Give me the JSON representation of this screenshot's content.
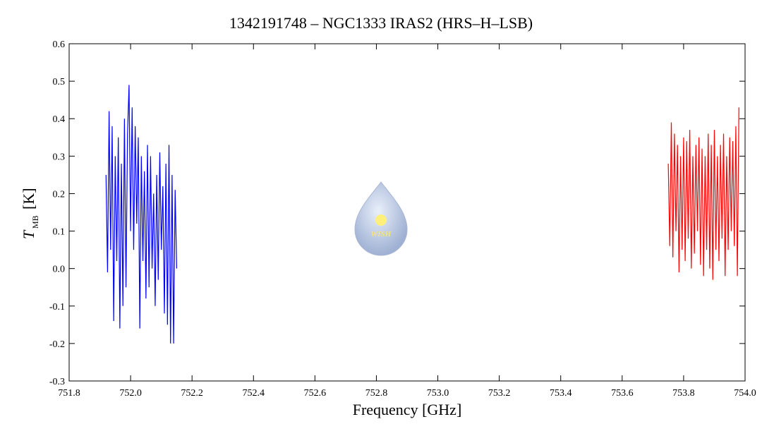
{
  "chart_data": {
    "type": "line",
    "title": "1342191748 – NGC1333 IRAS2 (HRS–H–LSB)",
    "x_label": "Frequency [GHz]",
    "y_label": {
      "symbol": "T",
      "subscript": "MB",
      "unit": "[K]"
    },
    "logo_text": "WISH",
    "xlim": [
      751.8,
      754.0
    ],
    "xticks": [
      751.8,
      {
        "value": 752,
        "label": "752.0"
      },
      752.2,
      752.4,
      752.6,
      752.8,
      {
        "value": 753,
        "label": "753.0"
      },
      753.2,
      753.4,
      753.6,
      753.8,
      {
        "value": 754,
        "label": "754.0"
      }
    ],
    "ylim": [
      -0.3,
      0.6
    ],
    "yticks": [
      -0.3,
      -0.2,
      -0.1,
      {
        "value": 0,
        "label": "0.0"
      },
      0.1,
      0.2,
      0.3,
      0.4,
      0.5,
      0.6
    ],
    "grid": false,
    "series": [
      {
        "color": "#0000ff",
        "x": [
          751.92,
          751.925,
          751.93,
          751.935,
          751.94,
          751.945,
          751.95,
          751.955,
          751.96,
          751.965,
          751.97,
          751.975,
          751.98,
          751.985,
          751.99,
          751.995,
          752.0,
          752.005,
          752.01,
          752.015,
          752.02,
          752.025,
          752.03,
          752.035,
          752.04,
          752.045,
          752.05,
          752.055,
          752.06,
          752.065,
          752.07,
          752.075,
          752.08,
          752.085,
          752.09,
          752.095,
          752.1,
          752.105,
          752.11,
          752.115,
          752.12,
          752.125,
          752.13,
          752.135,
          752.14,
          752.145,
          752.15
        ],
        "values": [
          0.25,
          -0.01,
          0.42,
          0.05,
          0.38,
          -0.14,
          0.3,
          0.02,
          0.35,
          -0.16,
          0.28,
          -0.1,
          0.4,
          -0.05,
          0.36,
          0.49,
          0.1,
          0.43,
          0.05,
          0.38,
          0.12,
          0.35,
          -0.16,
          0.3,
          0.02,
          0.26,
          -0.08,
          0.33,
          -0.05,
          0.3,
          0.0,
          0.2,
          -0.1,
          0.25,
          -0.03,
          0.31,
          0.05,
          0.22,
          -0.12,
          0.28,
          -0.15,
          0.33,
          -0.2,
          0.25,
          -0.2,
          0.21,
          0.0
        ]
      },
      {
        "color": "#ff0000",
        "x": [
          753.75,
          753.755,
          753.76,
          753.765,
          753.77,
          753.775,
          753.78,
          753.785,
          753.79,
          753.795,
          753.8,
          753.805,
          753.81,
          753.815,
          753.82,
          753.825,
          753.83,
          753.835,
          753.84,
          753.845,
          753.85,
          753.855,
          753.86,
          753.865,
          753.87,
          753.875,
          753.88,
          753.885,
          753.89,
          753.895,
          753.9,
          753.905,
          753.91,
          753.915,
          753.92,
          753.925,
          753.93,
          753.935,
          753.94,
          753.945,
          753.95,
          753.955,
          753.96,
          753.965,
          753.97,
          753.975,
          753.98
        ],
        "values": [
          0.28,
          0.06,
          0.39,
          0.03,
          0.36,
          0.1,
          0.33,
          -0.01,
          0.3,
          0.05,
          0.35,
          0.02,
          0.34,
          0.08,
          0.37,
          0.0,
          0.3,
          0.04,
          0.33,
          0.1,
          0.35,
          0.01,
          0.32,
          -0.02,
          0.3,
          0.05,
          0.36,
          0.0,
          0.33,
          -0.03,
          0.37,
          0.05,
          0.3,
          0.02,
          0.33,
          0.08,
          0.36,
          -0.02,
          0.3,
          0.05,
          0.35,
          0.1,
          0.34,
          0.06,
          0.38,
          -0.02,
          0.43
        ]
      }
    ]
  }
}
